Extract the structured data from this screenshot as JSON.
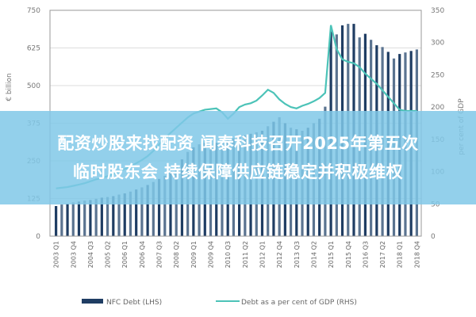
{
  "banner": {
    "line1": "配资炒股来找配资 闻泰科技召开2025年第五次",
    "line2": "临时股东会 持续保障供应链稳定并积极维权"
  },
  "chart_data": {
    "type": "bar+line",
    "title": "",
    "ylabel_left": "€ billion",
    "ylabel_right": "per cent of GDP",
    "ylim_left": [
      0,
      750
    ],
    "ylim_right": [
      0,
      350
    ],
    "yticks_left": [
      0,
      125,
      250,
      375,
      500,
      625,
      750
    ],
    "yticks_right": [
      0,
      50,
      100,
      150,
      200,
      250,
      300,
      350
    ],
    "grid": true,
    "legend_position": "bottom",
    "colors": {
      "bars": "#1f3d63",
      "line": "#4cc3b8"
    },
    "x": [
      "2003 Q1",
      "2003 Q2",
      "2003 Q3",
      "2003 Q4",
      "2004 Q1",
      "2004 Q2",
      "2004 Q3",
      "2004 Q4",
      "2005 Q1",
      "2005 Q2",
      "2005 Q3",
      "2005 Q4",
      "2006 Q1",
      "2006 Q2",
      "2006 Q3",
      "2006 Q4",
      "2007 Q1",
      "2007 Q2",
      "2007 Q3",
      "2007 Q4",
      "2008 Q1",
      "2008 Q2",
      "2008 Q3",
      "2008 Q4",
      "2009 Q1",
      "2009 Q2",
      "2009 Q3",
      "2009 Q4",
      "2010 Q1",
      "2010 Q2",
      "2010 Q3",
      "2010 Q4",
      "2011 Q1",
      "2011 Q2",
      "2011 Q3",
      "2011 Q4",
      "2012 Q1",
      "2012 Q2",
      "2012 Q3",
      "2012 Q4",
      "2013 Q1",
      "2013 Q2",
      "2013 Q3",
      "2013 Q4",
      "2014 Q1",
      "2014 Q2",
      "2014 Q3",
      "2014 Q4",
      "2015 Q1",
      "2015 Q2",
      "2015 Q3",
      "2015 Q4",
      "2016 Q1",
      "2016 Q2",
      "2016 Q3",
      "2016 Q4",
      "2017 Q1",
      "2017 Q2",
      "2017 Q3",
      "2017 Q4",
      "2018 Q1",
      "2018 Q2",
      "2018 Q3",
      "2018 Q4"
    ],
    "xticks": [
      "2003 Q1",
      "2003 Q4",
      "2004 Q3",
      "2005 Q2",
      "2006 Q1",
      "2006 Q4",
      "2007 Q3",
      "2008 Q2",
      "2009 Q1",
      "2009 Q4",
      "2010 Q3",
      "2011 Q2",
      "2012 Q1",
      "2012 Q4",
      "2013 Q3",
      "2014 Q2",
      "2015 Q1",
      "2015 Q4",
      "2016 Q3",
      "2017 Q2",
      "2018 Q1",
      "2018 Q4"
    ],
    "series": [
      {
        "name": "NFC Debt (LHS)",
        "type": "bar",
        "axis": "left",
        "values": [
          100,
          105,
          108,
          112,
          115,
          118,
          120,
          124,
          128,
          130,
          133,
          138,
          142,
          148,
          155,
          162,
          170,
          180,
          190,
          200,
          215,
          235,
          255,
          280,
          295,
          305,
          310,
          305,
          310,
          315,
          320,
          325,
          330,
          335,
          340,
          345,
          350,
          365,
          380,
          395,
          375,
          360,
          355,
          350,
          360,
          375,
          390,
          430,
          680,
          670,
          700,
          705,
          705,
          660,
          672,
          652,
          634,
          628,
          612,
          590,
          605,
          610,
          615,
          620
        ]
      },
      {
        "name": "Debt as a per cent of GDP (RHS)",
        "type": "line",
        "axis": "right",
        "values": [
          74,
          75,
          76,
          78,
          80,
          82,
          85,
          88,
          90,
          93,
          96,
          100,
          104,
          108,
          113,
          118,
          124,
          132,
          142,
          152,
          160,
          168,
          176,
          184,
          190,
          193,
          196,
          197,
          198,
          192,
          182,
          190,
          200,
          204,
          206,
          210,
          218,
          227,
          222,
          212,
          205,
          200,
          198,
          202,
          205,
          209,
          214,
          222,
          327,
          290,
          274,
          270,
          268,
          262,
          252,
          244,
          236,
          226,
          216,
          206,
          196,
          194,
          194,
          194
        ]
      }
    ]
  }
}
